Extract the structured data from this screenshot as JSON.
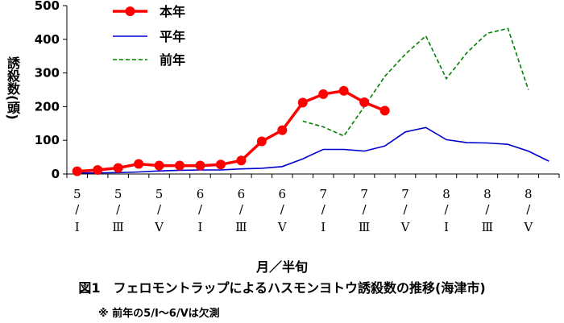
{
  "chart_data": {
    "type": "line",
    "title": "",
    "ylabel": "誘殺数(頭)",
    "xlabel": "月／半旬",
    "ylim": [
      0,
      500
    ],
    "yticks": [
      0,
      100,
      200,
      300,
      400,
      500
    ],
    "categories": [
      {
        "month": "5",
        "sep": "/",
        "roman": "Ⅰ"
      },
      {
        "month": "",
        "sep": "",
        "roman": ""
      },
      {
        "month": "5",
        "sep": "/",
        "roman": "Ⅲ"
      },
      {
        "month": "",
        "sep": "",
        "roman": ""
      },
      {
        "month": "5",
        "sep": "/",
        "roman": "Ⅴ"
      },
      {
        "month": "",
        "sep": "",
        "roman": ""
      },
      {
        "month": "6",
        "sep": "/",
        "roman": "Ⅰ"
      },
      {
        "month": "",
        "sep": "",
        "roman": ""
      },
      {
        "month": "6",
        "sep": "/",
        "roman": "Ⅲ"
      },
      {
        "month": "",
        "sep": "",
        "roman": ""
      },
      {
        "month": "6",
        "sep": "/",
        "roman": "Ⅴ"
      },
      {
        "month": "",
        "sep": "",
        "roman": ""
      },
      {
        "month": "7",
        "sep": "/",
        "roman": "Ⅰ"
      },
      {
        "month": "",
        "sep": "",
        "roman": ""
      },
      {
        "month": "7",
        "sep": "/",
        "roman": "Ⅲ"
      },
      {
        "month": "",
        "sep": "",
        "roman": ""
      },
      {
        "month": "7",
        "sep": "/",
        "roman": "Ⅴ"
      },
      {
        "month": "",
        "sep": "",
        "roman": ""
      },
      {
        "month": "8",
        "sep": "/",
        "roman": "Ⅰ"
      },
      {
        "month": "",
        "sep": "",
        "roman": ""
      },
      {
        "month": "8",
        "sep": "/",
        "roman": "Ⅲ"
      },
      {
        "month": "",
        "sep": "",
        "roman": ""
      },
      {
        "month": "8",
        "sep": "/",
        "roman": "Ⅴ"
      },
      {
        "month": "",
        "sep": "",
        "roman": ""
      }
    ],
    "series": [
      {
        "name": "本年",
        "color": "#ff0000",
        "style": "solid-marker",
        "values": [
          8,
          12,
          18,
          30,
          25,
          25,
          25,
          28,
          40,
          97,
          130,
          212,
          237,
          247,
          213,
          188,
          null,
          null,
          null,
          null,
          null,
          null,
          null,
          null
        ]
      },
      {
        "name": "平年",
        "color": "#0000cc",
        "style": "solid",
        "values": [
          3,
          3,
          4,
          6,
          9,
          11,
          12,
          12,
          15,
          17,
          22,
          45,
          73,
          73,
          68,
          83,
          125,
          138,
          102,
          93,
          92,
          88,
          68,
          38
        ]
      },
      {
        "name": "前年",
        "color": "#008000",
        "style": "dashed",
        "values": [
          null,
          null,
          null,
          null,
          null,
          null,
          null,
          null,
          null,
          null,
          null,
          157,
          140,
          113,
          200,
          290,
          356,
          410,
          283,
          360,
          418,
          432,
          250,
          null
        ]
      }
    ],
    "legend_position": "top-left-inside",
    "grid": false
  },
  "caption": "図1　フェロモントラップによるハスモンヨトウ誘殺数の推移(海津市)",
  "note": "※ 前年の5/Ⅰ～6/Ⅴは欠測"
}
